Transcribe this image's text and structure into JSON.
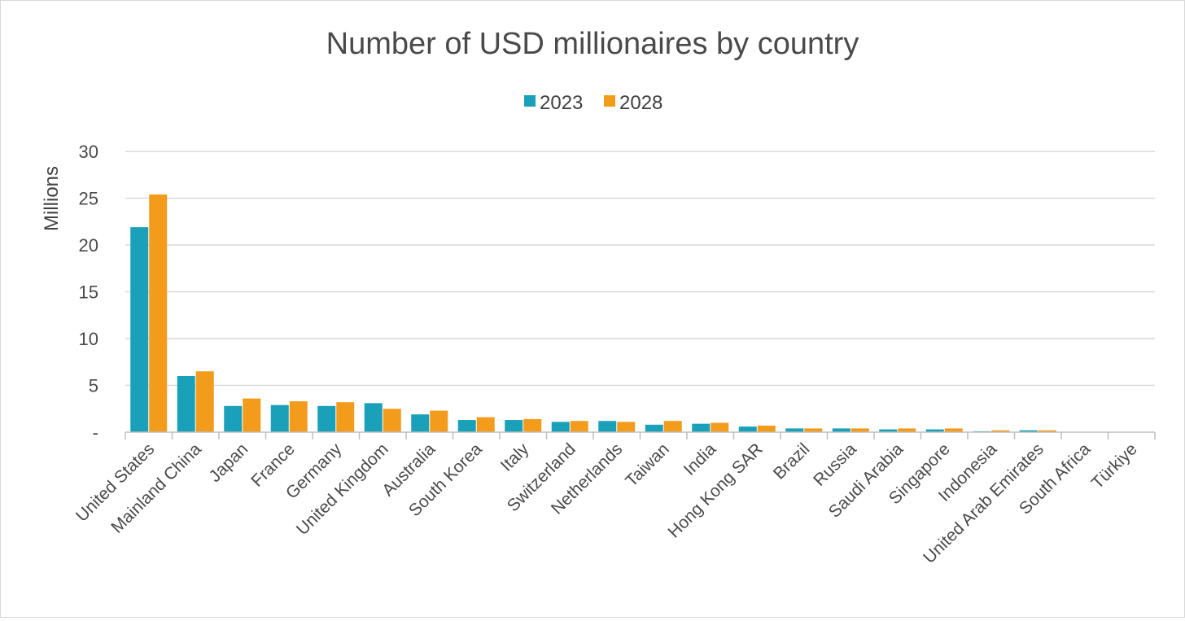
{
  "chart_data": {
    "type": "bar",
    "title": "Number of USD millionaires by country",
    "ylabel": "Millions",
    "xlabel": "",
    "ylim": [
      0,
      30
    ],
    "yticks": [
      0,
      5,
      10,
      15,
      20,
      25,
      30
    ],
    "yticklabels": [
      "-",
      "5",
      "10",
      "15",
      "20",
      "25",
      "30"
    ],
    "grid": true,
    "legend_placement": "top-center",
    "categories": [
      "United States",
      "Mainland China",
      "Japan",
      "France",
      "Germany",
      "United Kingdom",
      "Australia",
      "South Korea",
      "Italy",
      "Switzerland",
      "Netherlands",
      "Taiwan",
      "India",
      "Hong Kong SAR",
      "Brazil",
      "Russia",
      "Saudi Arabia",
      "Singapore",
      "Indonesia",
      "United Arab Emirates",
      "South Africa",
      "Türkiye"
    ],
    "series": [
      {
        "name": "2023",
        "color": "#1aa0b8",
        "values": [
          21.9,
          6.0,
          2.8,
          2.9,
          2.8,
          3.1,
          1.9,
          1.3,
          1.3,
          1.1,
          1.2,
          0.8,
          0.9,
          0.6,
          0.4,
          0.4,
          0.3,
          0.3,
          0.1,
          0.2,
          0.0,
          0.0
        ]
      },
      {
        "name": "2028",
        "color": "#f39c1c",
        "values": [
          25.4,
          6.5,
          3.6,
          3.3,
          3.2,
          2.5,
          2.3,
          1.6,
          1.4,
          1.2,
          1.1,
          1.2,
          1.0,
          0.7,
          0.4,
          0.4,
          0.4,
          0.4,
          0.2,
          0.2,
          0.0,
          0.0
        ]
      }
    ]
  }
}
